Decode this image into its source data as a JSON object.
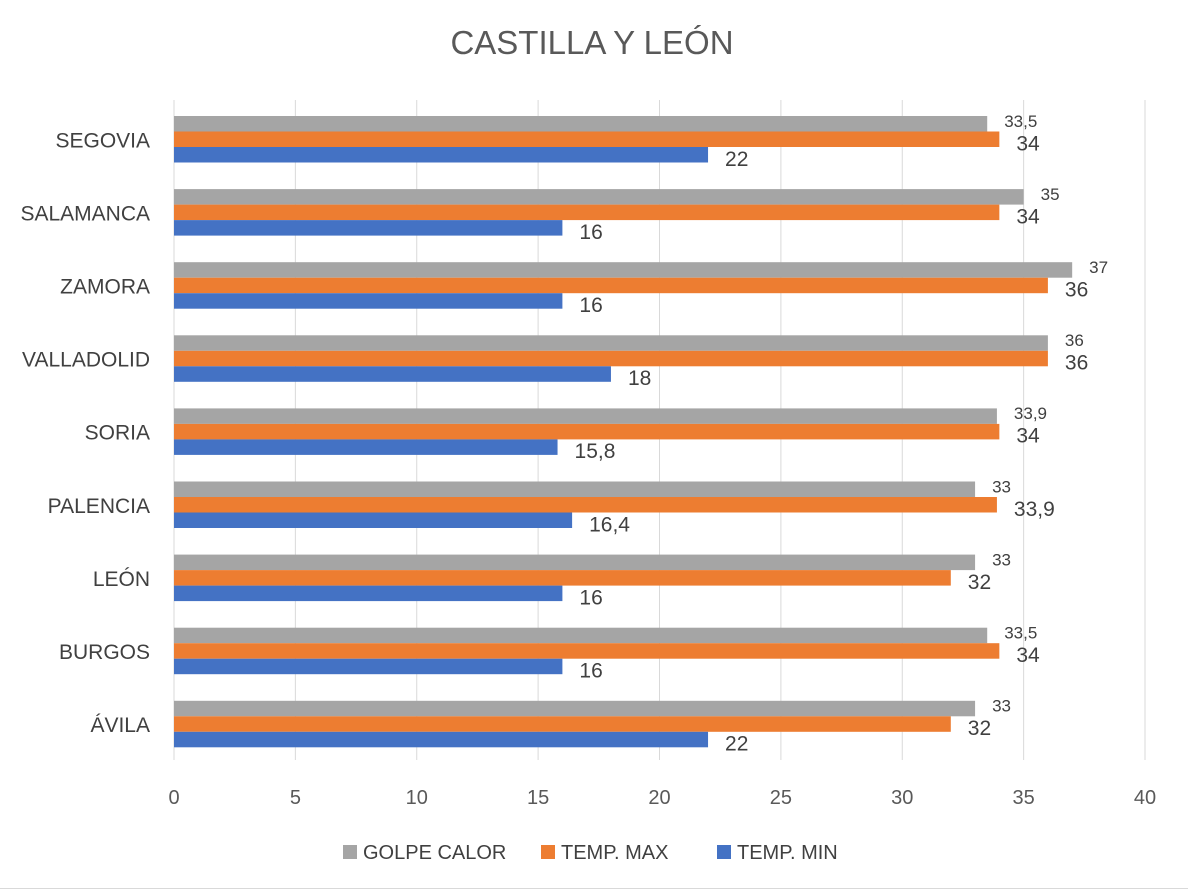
{
  "chart_data": {
    "type": "bar",
    "orientation": "horizontal",
    "title": "CASTILLA Y LEÓN",
    "categories": [
      "SEGOVIA",
      "SALAMANCA",
      "ZAMORA",
      "VALLADOLID",
      "SORIA",
      "PALENCIA",
      "LEÓN",
      "BURGOS",
      "ÁVILA"
    ],
    "series": [
      {
        "name": "GOLPE CALOR",
        "color": "#a5a5a5",
        "values": [
          33.5,
          35,
          37,
          36,
          33.9,
          33,
          33,
          33.5,
          33
        ],
        "labels": [
          "33,5",
          "35",
          "37",
          "36",
          "33,9",
          "33",
          "33",
          "33,5",
          "33"
        ]
      },
      {
        "name": "TEMP. MAX",
        "color": "#ed7d31",
        "values": [
          34,
          34,
          36,
          36,
          34,
          33.9,
          32,
          34,
          32
        ],
        "labels": [
          "34",
          "34",
          "36",
          "36",
          "34",
          "33,9",
          "32",
          "34",
          "32"
        ]
      },
      {
        "name": "TEMP. MIN",
        "color": "#4472c4",
        "values": [
          22,
          16,
          16,
          18,
          15.8,
          16.4,
          16,
          16,
          22
        ],
        "labels": [
          "22",
          "16",
          "16",
          "18",
          "15,8",
          "16,4",
          "16",
          "16",
          "22"
        ]
      }
    ],
    "xlim": [
      0,
      40
    ],
    "xticks": [
      0,
      5,
      10,
      15,
      20,
      25,
      30,
      35,
      40
    ],
    "grid": true,
    "legend": "bottom"
  }
}
